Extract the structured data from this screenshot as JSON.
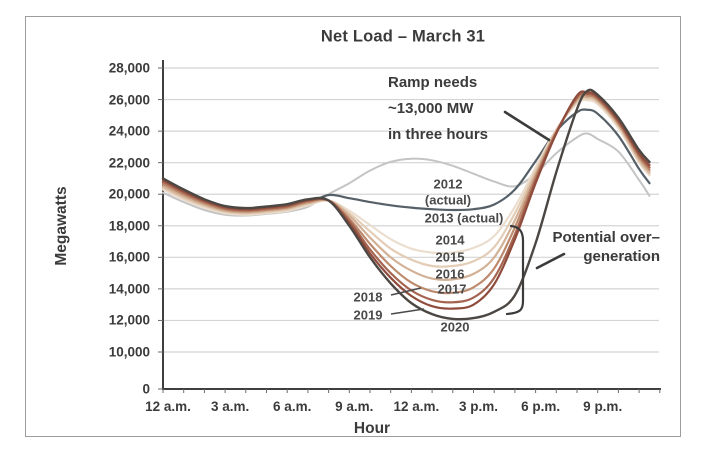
{
  "chart_data": {
    "type": "line",
    "title": "Net Load – March 31",
    "xlabel": "Hour",
    "ylabel": "Megawatts",
    "grid": "horizontal gridlines every 2,000 MW from 10,000 to 28,000",
    "ylim": [
      0,
      28000
    ],
    "y_axis_note": "axis compressed between 0 and 10,000",
    "y_ticks": [
      {
        "label": "28,000",
        "value": 28000
      },
      {
        "label": "26,000",
        "value": 26000
      },
      {
        "label": "24,000",
        "value": 24000
      },
      {
        "label": "22,000",
        "value": 22000
      },
      {
        "label": "20,000",
        "value": 20000
      },
      {
        "label": "18,000",
        "value": 18000
      },
      {
        "label": "16,000",
        "value": 16000
      },
      {
        "label": "14,000",
        "value": 14000
      },
      {
        "label": "12,000",
        "value": 12000
      },
      {
        "label": "10,000",
        "value": 10000
      },
      {
        "label": "0",
        "value": 0
      }
    ],
    "x_ticks": [
      {
        "label": "12 a.m.",
        "hour": 0
      },
      {
        "label": "3 a.m.",
        "hour": 3
      },
      {
        "label": "6 a.m.",
        "hour": 6
      },
      {
        "label": "9 a.m.",
        "hour": 9
      },
      {
        "label": "12 a.m.",
        "hour": 12
      },
      {
        "label": "3 p.m.",
        "hour": 15
      },
      {
        "label": "6 p.m.",
        "hour": 18
      },
      {
        "label": "9 p.m.",
        "hour": 21
      }
    ],
    "x_hours": [
      0,
      1,
      2,
      3,
      4,
      5,
      6,
      7,
      8,
      9,
      10,
      11,
      12,
      13,
      14,
      15,
      16,
      17,
      18,
      19,
      20,
      20.5,
      21,
      22,
      23,
      23.5
    ],
    "series": [
      {
        "name": "2012 (actual)",
        "label_lines": [
          "2012",
          "(actual)"
        ],
        "color": "#c4c4c4",
        "width": 2,
        "values": [
          20100,
          19500,
          19000,
          18700,
          18650,
          18750,
          18900,
          19200,
          20000,
          20700,
          21500,
          22050,
          22250,
          22150,
          21800,
          21300,
          20800,
          20500,
          21300,
          22600,
          23600,
          23850,
          23500,
          22700,
          20900,
          19900
        ]
      },
      {
        "name": "2013 (actual)",
        "label_lines": [
          "2013 (actual)"
        ],
        "color": "#566068",
        "width": 2.2,
        "values": [
          20400,
          19750,
          19250,
          18900,
          18800,
          18900,
          19050,
          19400,
          19950,
          19750,
          19500,
          19300,
          19150,
          19050,
          19000,
          19050,
          19350,
          20300,
          22100,
          24000,
          25200,
          25350,
          25100,
          23700,
          21600,
          20700
        ]
      },
      {
        "name": "2014",
        "label_lines": [
          "2014"
        ],
        "color": "#ecdecf",
        "width": 2.2,
        "values": [
          20300,
          19650,
          19150,
          18800,
          18700,
          18800,
          18950,
          19300,
          19600,
          18950,
          18050,
          17150,
          16550,
          16300,
          16300,
          16600,
          17350,
          19200,
          21700,
          24100,
          25750,
          25950,
          25700,
          24200,
          22000,
          21200
        ]
      },
      {
        "name": "2015",
        "label_lines": [
          "2015"
        ],
        "color": "#e3cdb6",
        "width": 2.2,
        "values": [
          20400,
          19750,
          19250,
          18880,
          18770,
          18870,
          19020,
          19370,
          19600,
          18800,
          17650,
          16550,
          15850,
          15450,
          15450,
          15750,
          16650,
          18800,
          21500,
          24050,
          25850,
          26050,
          25800,
          24300,
          22100,
          21300
        ]
      },
      {
        "name": "2016",
        "label_lines": [
          "2016"
        ],
        "color": "#d2b196",
        "width": 2.2,
        "values": [
          20500,
          19850,
          19330,
          18950,
          18840,
          18940,
          19090,
          19440,
          19600,
          18650,
          17250,
          16000,
          15150,
          14650,
          14600,
          14950,
          16000,
          18350,
          21300,
          24000,
          25950,
          26150,
          25900,
          24400,
          22200,
          21400
        ]
      },
      {
        "name": "2017",
        "label_lines": [
          "2017"
        ],
        "color": "#bd8a6d",
        "width": 2.2,
        "values": [
          20650,
          19980,
          19430,
          19030,
          18910,
          19010,
          19160,
          19510,
          19600,
          18450,
          16850,
          15450,
          14400,
          13850,
          13750,
          14100,
          15300,
          17900,
          21100,
          23950,
          26050,
          26250,
          26000,
          24500,
          22350,
          21550
        ]
      },
      {
        "name": "2018",
        "label_lines": [
          "2018"
        ],
        "color": "#a56450",
        "width": 2.2,
        "values": [
          20800,
          20100,
          19530,
          19110,
          18980,
          19080,
          19230,
          19580,
          19600,
          18300,
          16500,
          15000,
          13900,
          13300,
          13150,
          13450,
          14700,
          17450,
          20900,
          23900,
          26150,
          26350,
          26100,
          24600,
          22500,
          21700
        ]
      },
      {
        "name": "2019",
        "label_lines": [
          "2019"
        ],
        "color": "#8f4c3c",
        "width": 2.2,
        "values": [
          20900,
          20200,
          19600,
          19180,
          19050,
          19150,
          19300,
          19630,
          19600,
          18150,
          16250,
          14700,
          13550,
          12900,
          12750,
          13000,
          14300,
          17150,
          20700,
          23850,
          26250,
          26450,
          26200,
          24700,
          22600,
          21850
        ]
      },
      {
        "name": "2020",
        "label_lines": [
          "2020"
        ],
        "color": "#4c4743",
        "width": 2.4,
        "values": [
          21000,
          20300,
          19680,
          19250,
          19120,
          19220,
          19370,
          19680,
          19600,
          18000,
          16000,
          14350,
          13100,
          12400,
          12100,
          12150,
          12550,
          13600,
          16900,
          21400,
          25400,
          26550,
          26300,
          24850,
          22800,
          22050
        ]
      }
    ],
    "annotations": {
      "ramp": {
        "lines": [
          "Ramp needs",
          "~13,000 MW",
          "in three hours"
        ]
      },
      "overgeneration": {
        "lines": [
          "Potential over–",
          "generation"
        ]
      }
    }
  }
}
